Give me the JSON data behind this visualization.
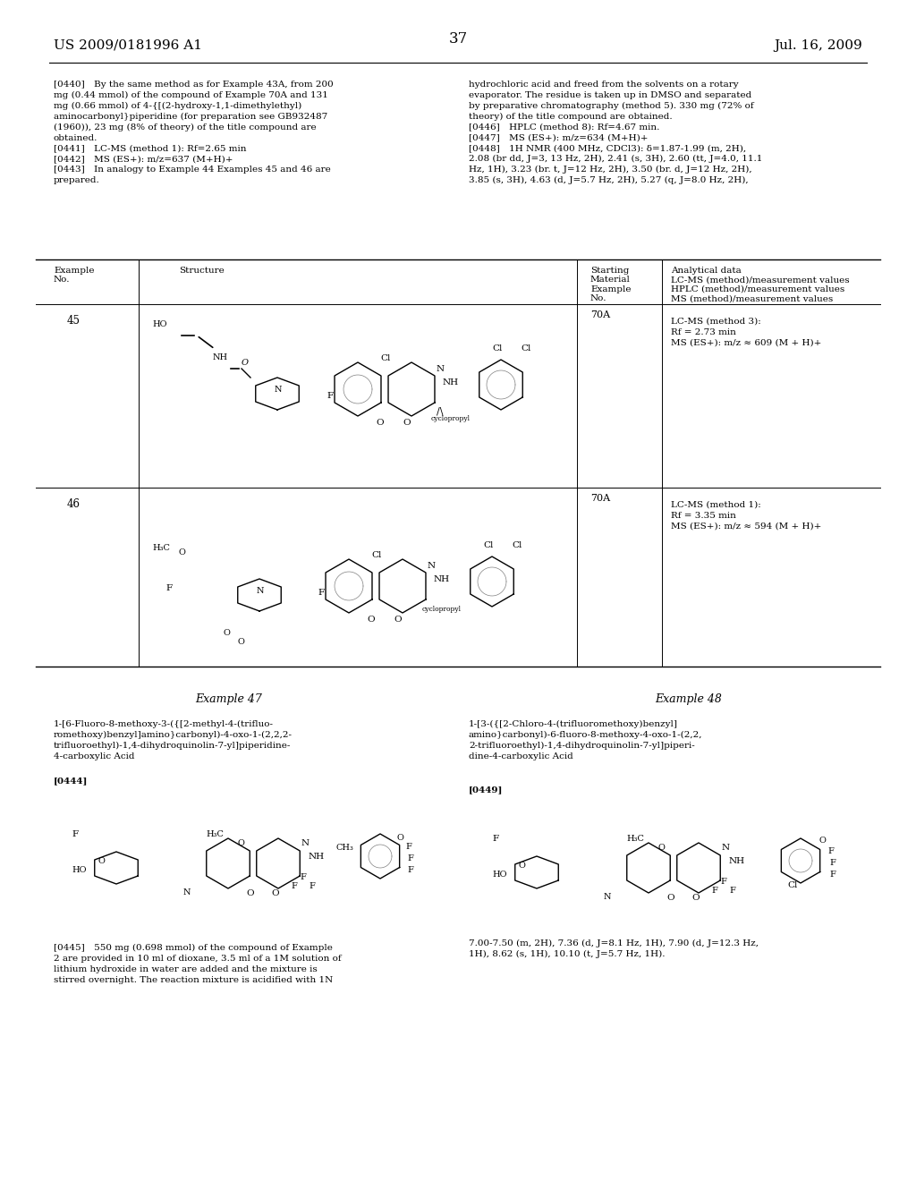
{
  "background_color": "#ffffff",
  "page_number": "37",
  "header_left": "US 2009/0181996 A1",
  "header_right": "Jul. 16, 2009",
  "top_left_col": "[0440] By the same method as for Example 43A, from 200\nmg (0.44 mmol) of the compound of Example 70A and 131\nmg (0.66 mmol) of 4-{[(2-hydroxy-1,1-dimethylethyl)\naminocarbonyl}piperidine (for preparation see GB932487\n(1960)), 23 mg (8% of theory) of the title compound are\nobtained.\n[0441] LC-MS (method 1): Rf=2.65 min\n[0442] MS (ES+): m/z=637 (M+H)+\n[0443] In analogy to Example 44 Examples 45 and 46 are\nprepared.",
  "top_right_col": "hydrochloric acid and freed from the solvents on a rotary\nevaporator. The residue is taken up in DMSO and separated\nby preparative chromatography (method 5). 330 mg (72% of\ntheory) of the title compound are obtained.\n[0446] HPLC (method 8): Rf=4.67 min.\n[0447] MS (ES+): m/z=634 (M+H)+\n[0448] 1H NMR (400 MHz, CDCl3): δ=1.87-1.99 (m, 2H),\n2.08 (br dd, J=3, 13 Hz, 2H), 2.41 (s, 3H), 2.60 (tt, J=4.0, 11.1\nHz, 1H), 3.23 (br. t, J=12 Hz, 2H), 3.50 (br. d, J=12 Hz, 2H),\n3.85 (s, 3H), 4.63 (d, J=5.7 Hz, 2H), 5.27 (q, J=8.0 Hz, 2H),",
  "table_header_cols": [
    "Example\nNo.",
    "Structure",
    "Starting\nMaterial\nExample\nNo.",
    "Analytical data\nLC-MS (method)/measurement values\nHPLC (method)/measurement values\nMS (method)/measurement values"
  ],
  "example_47_title": "Example 47",
  "example_47_name": "1-[6-Fluoro-8-methoxy-3-({[2-methyl-4-(trifluo-\nromethoxy)benzyl]amino}carbonyl)-4-oxo-1-(2,2,2-\ntrifluoroethyl)-1,4-dihydroquinolin-7-yl]piperidine-\n4-carboxylic Acid",
  "example_47_tag": "[0444]",
  "example_47_text": "[0445] 550 mg (0.698 mmol) of the compound of Example\n2 are provided in 10 ml of dioxane, 3.5 ml of a 1M solution of\nlithium hydroxide in water are added and the mixture is\nstirred overnight. The reaction mixture is acidified with 1N",
  "example_48_title": "Example 48",
  "example_48_name": "1-[3-({[2-Chloro-4-(trifluoromethoxy)benzyl]\namino}carbonyl)-6-fluoro-8-methoxy-4-oxo-1-(2,2,\n2-trifluoroethyl)-1,4-dihydroquinolin-7-yl]piperi-\ndine-4-carboxylic Acid",
  "example_48_tag": "[0449]",
  "example_48_right_text": "7.00-7.50 (m, 2H), 7.36 (d, J=8.1 Hz, 1H), 7.90 (d, J=12.3 Hz,\n1H), 8.62 (s, 1H), 10.10 (t, J=5.7 Hz, 1H).",
  "row45_example": "45",
  "row45_data": "70A\nLC-MS (method 3):\nRf = 2.73 min\nMS (ES+): m/z ≈ 609 (M + H)+",
  "row46_example": "46",
  "row46_data": "70A\nLC-MS (method 1):\nRf = 3.35 min\nMS (ES+): m/z ≈ 594 (M + H)+"
}
